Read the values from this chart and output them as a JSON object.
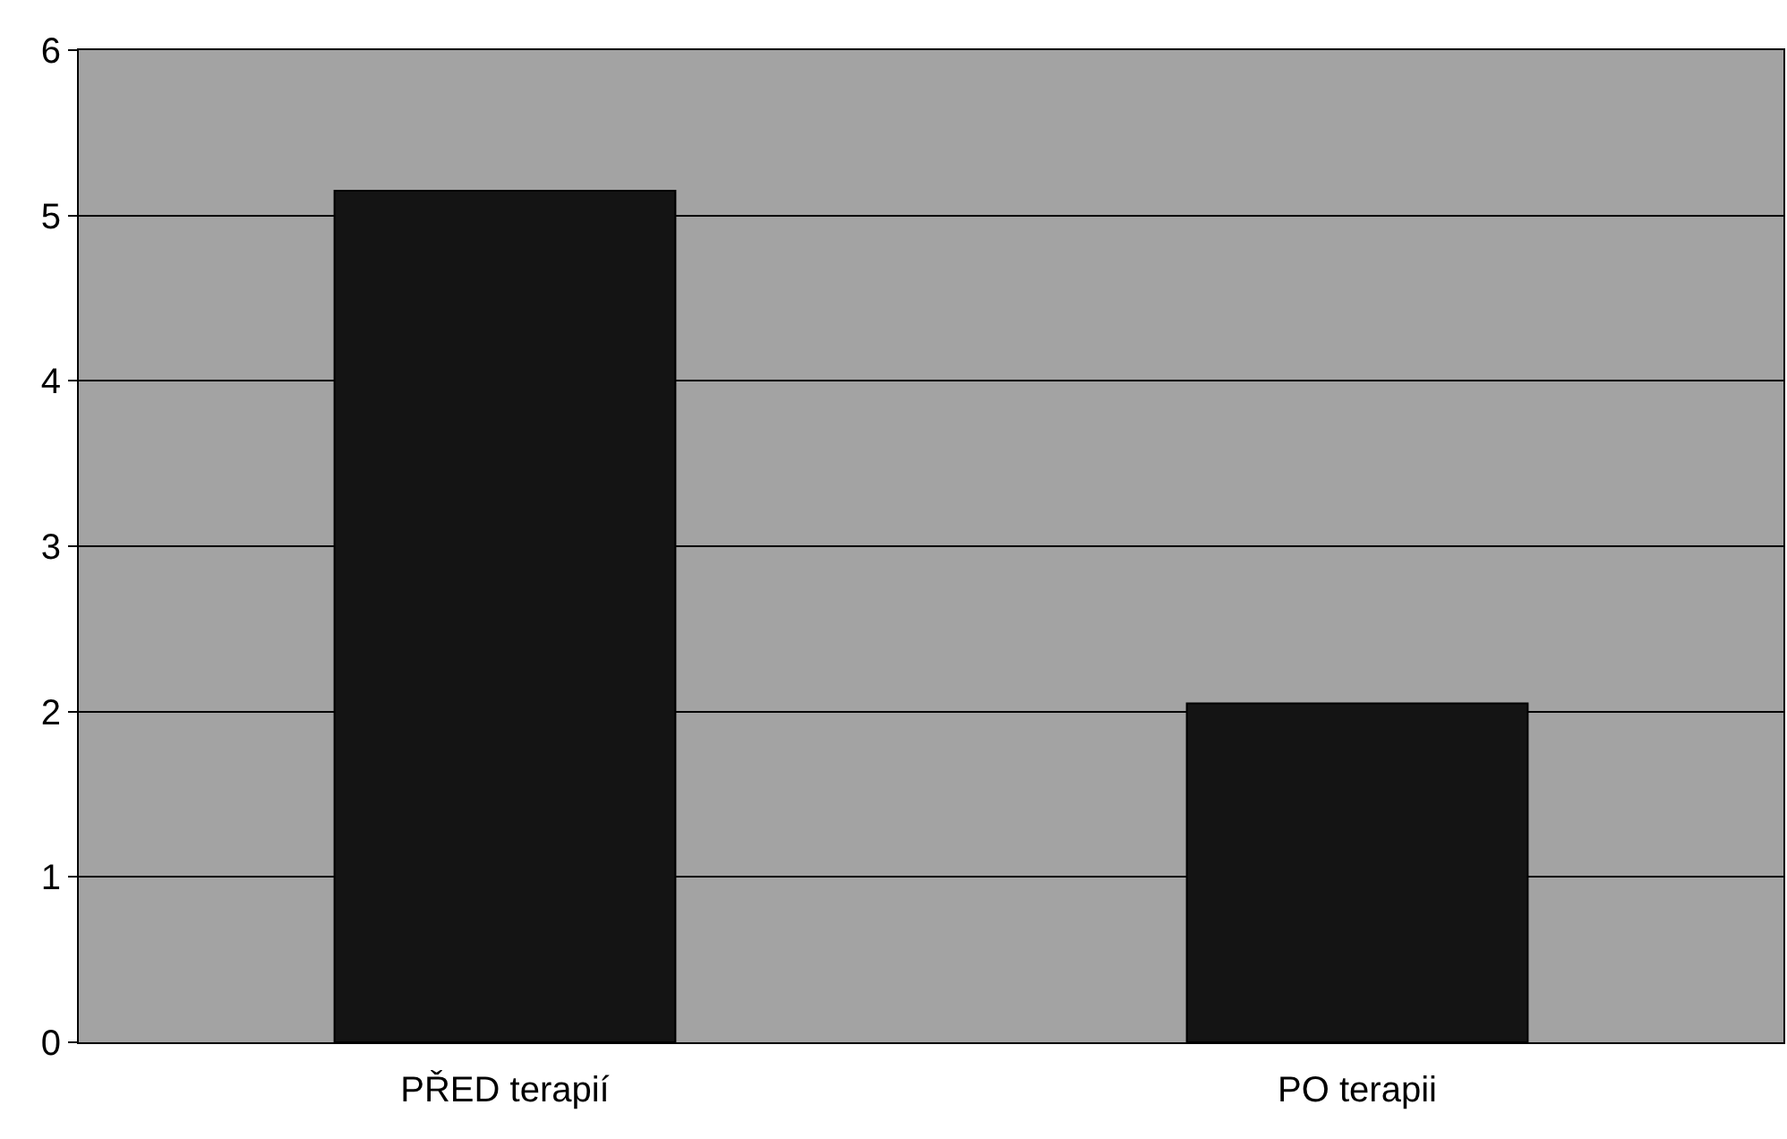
{
  "chart_data": {
    "type": "bar",
    "categories": [
      "PŘED terapií",
      "PO terapii"
    ],
    "values": [
      5.15,
      2.05
    ],
    "color": "#141414",
    "ylim": [
      0,
      6
    ],
    "yticks": [
      0,
      1,
      2,
      3,
      4,
      5,
      6
    ],
    "grid": "y",
    "legend": false
  }
}
